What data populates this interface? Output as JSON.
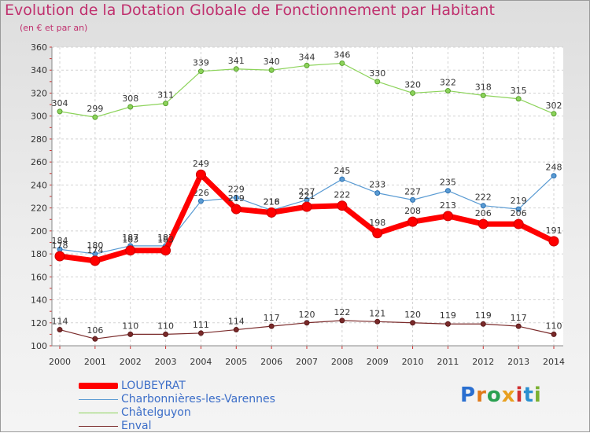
{
  "header": {
    "title": "Evolution de la Dotation Globale de Fonctionnement par Habitant",
    "subtitle": "(en € et par an)"
  },
  "logo": {
    "text": "Proxiti"
  },
  "colors": {
    "title": "#c0306e",
    "legend_text": "#3c6ec8",
    "loubeyrat": "#ff0000",
    "charbonnieres": "#5a9bd3",
    "chatelguyon": "#8cd35a",
    "enval": "#7a2a2a"
  },
  "chart_data": {
    "type": "line",
    "title": "Evolution de la Dotation Globale de Fonctionnement par Habitant",
    "subtitle": "(en € et par an)",
    "categories": [
      "2000",
      "2001",
      "2002",
      "2003",
      "2004",
      "2005",
      "2006",
      "2007",
      "2008",
      "2009",
      "2010",
      "2011",
      "2012",
      "2013",
      "2014"
    ],
    "ylim": [
      100,
      360
    ],
    "yticks": [
      "100",
      "120",
      "140",
      "160",
      "180",
      "200",
      "220",
      "240",
      "260",
      "280",
      "300",
      "320",
      "340",
      "360"
    ],
    "grid": true,
    "legend_position": "bottom-left",
    "series": [
      {
        "name": "LOUBEYRAT",
        "color": "#ff0000",
        "values": [
          178,
          174,
          183,
          183,
          249,
          219,
          216,
          221,
          222,
          198,
          208,
          213,
          206,
          206,
          191
        ]
      },
      {
        "name": "Charbonnières-les-Varennes",
        "color": "#5a9bd3",
        "values": [
          184,
          180,
          187,
          187,
          226,
          229,
          218,
          227,
          245,
          233,
          227,
          235,
          222,
          219,
          248
        ]
      },
      {
        "name": "Châtelguyon",
        "color": "#8cd35a",
        "values": [
          304,
          299,
          308,
          311,
          339,
          341,
          340,
          344,
          346,
          330,
          320,
          322,
          318,
          315,
          302
        ]
      },
      {
        "name": "Enval",
        "color": "#7a2a2a",
        "values": [
          114,
          106,
          110,
          110,
          111,
          114,
          117,
          120,
          122,
          121,
          120,
          119,
          119,
          117,
          110
        ]
      }
    ]
  }
}
